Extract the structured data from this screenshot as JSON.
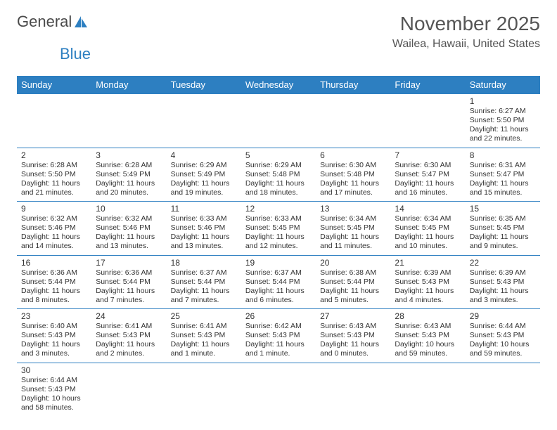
{
  "logo": {
    "text1": "General",
    "text2": "Blue",
    "icon_color": "#2d7fc1"
  },
  "header": {
    "title": "November 2025",
    "location": "Wailea, Hawaii, United States"
  },
  "colors": {
    "header_bg": "#2d7fc1",
    "header_text": "#ffffff",
    "border": "#2d7fc1",
    "text": "#333333",
    "bg": "#ffffff"
  },
  "font": {
    "family": "Arial",
    "title_size": 28,
    "location_size": 16,
    "th_size": 13,
    "cell_size": 10.5
  },
  "dayNames": [
    "Sunday",
    "Monday",
    "Tuesday",
    "Wednesday",
    "Thursday",
    "Friday",
    "Saturday"
  ],
  "weeks": [
    [
      null,
      null,
      null,
      null,
      null,
      null,
      {
        "d": "1",
        "sr": "Sunrise: 6:27 AM",
        "ss": "Sunset: 5:50 PM",
        "dl": "Daylight: 11 hours and 22 minutes."
      }
    ],
    [
      {
        "d": "2",
        "sr": "Sunrise: 6:28 AM",
        "ss": "Sunset: 5:50 PM",
        "dl": "Daylight: 11 hours and 21 minutes."
      },
      {
        "d": "3",
        "sr": "Sunrise: 6:28 AM",
        "ss": "Sunset: 5:49 PM",
        "dl": "Daylight: 11 hours and 20 minutes."
      },
      {
        "d": "4",
        "sr": "Sunrise: 6:29 AM",
        "ss": "Sunset: 5:49 PM",
        "dl": "Daylight: 11 hours and 19 minutes."
      },
      {
        "d": "5",
        "sr": "Sunrise: 6:29 AM",
        "ss": "Sunset: 5:48 PM",
        "dl": "Daylight: 11 hours and 18 minutes."
      },
      {
        "d": "6",
        "sr": "Sunrise: 6:30 AM",
        "ss": "Sunset: 5:48 PM",
        "dl": "Daylight: 11 hours and 17 minutes."
      },
      {
        "d": "7",
        "sr": "Sunrise: 6:30 AM",
        "ss": "Sunset: 5:47 PM",
        "dl": "Daylight: 11 hours and 16 minutes."
      },
      {
        "d": "8",
        "sr": "Sunrise: 6:31 AM",
        "ss": "Sunset: 5:47 PM",
        "dl": "Daylight: 11 hours and 15 minutes."
      }
    ],
    [
      {
        "d": "9",
        "sr": "Sunrise: 6:32 AM",
        "ss": "Sunset: 5:46 PM",
        "dl": "Daylight: 11 hours and 14 minutes."
      },
      {
        "d": "10",
        "sr": "Sunrise: 6:32 AM",
        "ss": "Sunset: 5:46 PM",
        "dl": "Daylight: 11 hours and 13 minutes."
      },
      {
        "d": "11",
        "sr": "Sunrise: 6:33 AM",
        "ss": "Sunset: 5:46 PM",
        "dl": "Daylight: 11 hours and 13 minutes."
      },
      {
        "d": "12",
        "sr": "Sunrise: 6:33 AM",
        "ss": "Sunset: 5:45 PM",
        "dl": "Daylight: 11 hours and 12 minutes."
      },
      {
        "d": "13",
        "sr": "Sunrise: 6:34 AM",
        "ss": "Sunset: 5:45 PM",
        "dl": "Daylight: 11 hours and 11 minutes."
      },
      {
        "d": "14",
        "sr": "Sunrise: 6:34 AM",
        "ss": "Sunset: 5:45 PM",
        "dl": "Daylight: 11 hours and 10 minutes."
      },
      {
        "d": "15",
        "sr": "Sunrise: 6:35 AM",
        "ss": "Sunset: 5:45 PM",
        "dl": "Daylight: 11 hours and 9 minutes."
      }
    ],
    [
      {
        "d": "16",
        "sr": "Sunrise: 6:36 AM",
        "ss": "Sunset: 5:44 PM",
        "dl": "Daylight: 11 hours and 8 minutes."
      },
      {
        "d": "17",
        "sr": "Sunrise: 6:36 AM",
        "ss": "Sunset: 5:44 PM",
        "dl": "Daylight: 11 hours and 7 minutes."
      },
      {
        "d": "18",
        "sr": "Sunrise: 6:37 AM",
        "ss": "Sunset: 5:44 PM",
        "dl": "Daylight: 11 hours and 7 minutes."
      },
      {
        "d": "19",
        "sr": "Sunrise: 6:37 AM",
        "ss": "Sunset: 5:44 PM",
        "dl": "Daylight: 11 hours and 6 minutes."
      },
      {
        "d": "20",
        "sr": "Sunrise: 6:38 AM",
        "ss": "Sunset: 5:44 PM",
        "dl": "Daylight: 11 hours and 5 minutes."
      },
      {
        "d": "21",
        "sr": "Sunrise: 6:39 AM",
        "ss": "Sunset: 5:43 PM",
        "dl": "Daylight: 11 hours and 4 minutes."
      },
      {
        "d": "22",
        "sr": "Sunrise: 6:39 AM",
        "ss": "Sunset: 5:43 PM",
        "dl": "Daylight: 11 hours and 3 minutes."
      }
    ],
    [
      {
        "d": "23",
        "sr": "Sunrise: 6:40 AM",
        "ss": "Sunset: 5:43 PM",
        "dl": "Daylight: 11 hours and 3 minutes."
      },
      {
        "d": "24",
        "sr": "Sunrise: 6:41 AM",
        "ss": "Sunset: 5:43 PM",
        "dl": "Daylight: 11 hours and 2 minutes."
      },
      {
        "d": "25",
        "sr": "Sunrise: 6:41 AM",
        "ss": "Sunset: 5:43 PM",
        "dl": "Daylight: 11 hours and 1 minute."
      },
      {
        "d": "26",
        "sr": "Sunrise: 6:42 AM",
        "ss": "Sunset: 5:43 PM",
        "dl": "Daylight: 11 hours and 1 minute."
      },
      {
        "d": "27",
        "sr": "Sunrise: 6:43 AM",
        "ss": "Sunset: 5:43 PM",
        "dl": "Daylight: 11 hours and 0 minutes."
      },
      {
        "d": "28",
        "sr": "Sunrise: 6:43 AM",
        "ss": "Sunset: 5:43 PM",
        "dl": "Daylight: 10 hours and 59 minutes."
      },
      {
        "d": "29",
        "sr": "Sunrise: 6:44 AM",
        "ss": "Sunset: 5:43 PM",
        "dl": "Daylight: 10 hours and 59 minutes."
      }
    ],
    [
      {
        "d": "30",
        "sr": "Sunrise: 6:44 AM",
        "ss": "Sunset: 5:43 PM",
        "dl": "Daylight: 10 hours and 58 minutes."
      },
      null,
      null,
      null,
      null,
      null,
      null
    ]
  ]
}
